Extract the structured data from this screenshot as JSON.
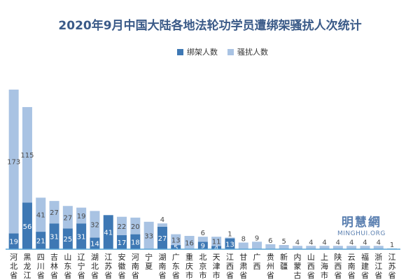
{
  "chart_data": {
    "type": "bar",
    "stacked": true,
    "title": "2020年9月中国大陆各地法轮功学员遭绑架骚扰人次统计",
    "legend_position": "top",
    "categories": [
      "河北省",
      "黑龙江",
      "四川省",
      "吉林省",
      "山东省",
      "辽宁省",
      "湖北省",
      "江苏省",
      "安徽省",
      "河南省",
      "宁夏",
      "湖南省",
      "广东省",
      "重庆市",
      "北京市",
      "天津市",
      "江西省",
      "甘肃省",
      "广西",
      "贵州省",
      "新疆",
      "内蒙古",
      "山西省",
      "上海市",
      "陕西省",
      "云南省",
      "福建省",
      "浙江省",
      "江苏省"
    ],
    "series": [
      {
        "name": "绑架人数",
        "color": "#3e78b4",
        "values": [
          19,
          56,
          21,
          31,
          25,
          31,
          14,
          41,
          17,
          18,
          0,
          27,
          5,
          0,
          9,
          4,
          13,
          0,
          0,
          0,
          0,
          0,
          0,
          0,
          0,
          0,
          0,
          0,
          0
        ]
      },
      {
        "name": "骚扰人数",
        "color": "#a9c3e3",
        "values": [
          173,
          115,
          41,
          27,
          27,
          19,
          32,
          0,
          22,
          20,
          33,
          4,
          13,
          16,
          6,
          11,
          1,
          8,
          9,
          6,
          5,
          4,
          4,
          4,
          4,
          4,
          4,
          4,
          1
        ]
      }
    ],
    "ylim": [
      0,
      200
    ],
    "grid": false
  },
  "watermark": {
    "cn": "明慧網",
    "en": "MINGHUI.ORG"
  }
}
